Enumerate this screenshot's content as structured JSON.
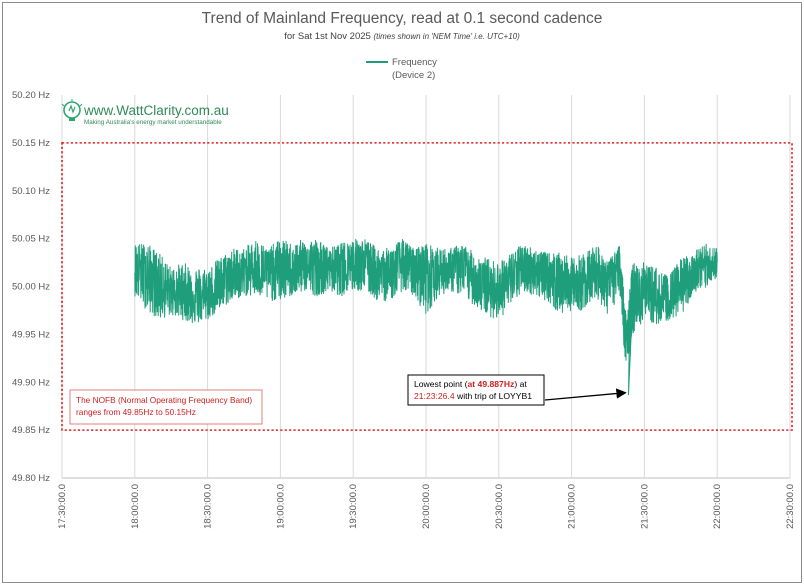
{
  "chart_data": {
    "type": "line",
    "title": "Trend of Mainland Frequency, read at 0.1 second cadence",
    "subtitle_main": "for Sat 1st Nov 2025",
    "subtitle_note": "(times shown in 'NEM Time' i.e. UTC+10)",
    "ylabel": "",
    "xlabel": "",
    "ylim": [
      49.8,
      50.2
    ],
    "y_ticks": [
      "50.20 Hz",
      "50.15 Hz",
      "50.10 Hz",
      "50.05 Hz",
      "50.00 Hz",
      "49.95 Hz",
      "49.90 Hz",
      "49.85 Hz",
      "49.80 Hz"
    ],
    "y_tick_values": [
      50.2,
      50.15,
      50.1,
      50.05,
      50.0,
      49.95,
      49.9,
      49.85,
      49.8
    ],
    "x_ticks": [
      "17:30:00.0",
      "18:00:00.0",
      "18:30:00.0",
      "19:00:00.0",
      "19:30:00.0",
      "20:00:00.0",
      "20:30:00.0",
      "21:00:00.0",
      "21:30:00.0",
      "22:00:00.0",
      "22:30:00.0"
    ],
    "xlim": [
      "17:30:00.0",
      "22:30:00.0"
    ],
    "grid": "vertical",
    "legend": {
      "placement": "top-center",
      "line1": "Frequency",
      "line2": "(Device 2)",
      "color": "#1e9e7a"
    },
    "series": [
      {
        "name": "Frequency (Device 2)",
        "color": "#1e9e7a",
        "x": [
          "18:00",
          "18:05",
          "18:10",
          "18:15",
          "18:20",
          "18:25",
          "18:30",
          "18:35",
          "18:40",
          "18:45",
          "18:50",
          "18:55",
          "19:00",
          "19:05",
          "19:10",
          "19:15",
          "19:20",
          "19:25",
          "19:30",
          "19:35",
          "19:40",
          "19:45",
          "19:50",
          "19:55",
          "20:00",
          "20:05",
          "20:10",
          "20:15",
          "20:20",
          "20:25",
          "20:30",
          "20:35",
          "20:40",
          "20:45",
          "20:50",
          "20:55",
          "21:00",
          "21:05",
          "21:10",
          "21:15",
          "21:20",
          "21:23",
          "21:25",
          "21:30",
          "21:35",
          "21:40",
          "21:45",
          "21:50",
          "21:55",
          "22:00"
        ],
        "center": [
          50.025,
          50.015,
          50.005,
          49.995,
          49.995,
          49.99,
          49.99,
          50.0,
          50.01,
          50.015,
          50.02,
          50.015,
          50.02,
          50.015,
          50.02,
          50.02,
          50.02,
          50.02,
          50.025,
          50.025,
          50.015,
          50.015,
          50.025,
          50.02,
          50.02,
          50.015,
          50.02,
          50.02,
          50.01,
          50.0,
          50.0,
          50.01,
          50.02,
          50.015,
          50.015,
          50.01,
          50.0,
          50.005,
          50.02,
          50.01,
          50.02,
          49.935,
          49.99,
          50.0,
          49.985,
          49.98,
          49.995,
          50.015,
          50.02,
          50.025
        ],
        "max": [
          50.045,
          50.045,
          50.035,
          50.02,
          50.025,
          50.02,
          50.02,
          50.03,
          50.04,
          50.04,
          50.05,
          50.04,
          50.05,
          50.045,
          50.05,
          50.05,
          50.04,
          50.045,
          50.05,
          50.05,
          50.04,
          50.04,
          50.05,
          50.04,
          50.045,
          50.04,
          50.04,
          50.045,
          50.035,
          50.03,
          50.025,
          50.035,
          50.045,
          50.04,
          50.035,
          50.035,
          50.03,
          50.035,
          50.045,
          50.025,
          50.045,
          49.97,
          50.025,
          50.025,
          50.02,
          50.01,
          50.03,
          50.035,
          50.045,
          50.04
        ],
        "min": [
          49.99,
          49.975,
          49.965,
          49.97,
          49.965,
          49.96,
          49.965,
          49.975,
          49.985,
          49.99,
          49.99,
          49.985,
          49.985,
          49.99,
          49.995,
          49.99,
          49.995,
          49.99,
          49.995,
          49.995,
          49.985,
          49.985,
          49.995,
          49.99,
          49.97,
          49.99,
          49.995,
          49.99,
          49.98,
          49.97,
          49.965,
          49.98,
          49.995,
          49.99,
          49.985,
          49.97,
          49.975,
          49.975,
          49.99,
          49.97,
          49.99,
          49.887,
          49.95,
          49.965,
          49.96,
          49.965,
          49.97,
          49.99,
          49.995,
          50.01
        ]
      }
    ],
    "annotations": {
      "nofb_label": "The NOFB  (Normal Operating Frequency Band) ranges from 49.85Hz to 50.15Hz",
      "nofb_line1": "The NOFB  (Normal Operating Frequency Band)",
      "nofb_line2": "ranges from 49.85Hz to 50.15Hz",
      "nofb_band": [
        49.85,
        50.15
      ],
      "lowest_prefix": "Lowest point (",
      "lowest_value": "at 49.887Hz",
      "lowest_suffix": ") at",
      "lowest_time": "21:23:26.4",
      "lowest_tail": " with trip of LOYYB1",
      "lowest_point": {
        "x": "21:23:26.4",
        "y": 49.887
      }
    },
    "colors": {
      "line": "#1e9e7a",
      "band": "#e02020",
      "grid": "#d9d9d9",
      "axis_text": "#595959"
    }
  },
  "logo": {
    "name": "www.WattClarity.com.au",
    "tagline": "Making Australia's energy market understandable",
    "icon": "lightbulb-icon"
  }
}
